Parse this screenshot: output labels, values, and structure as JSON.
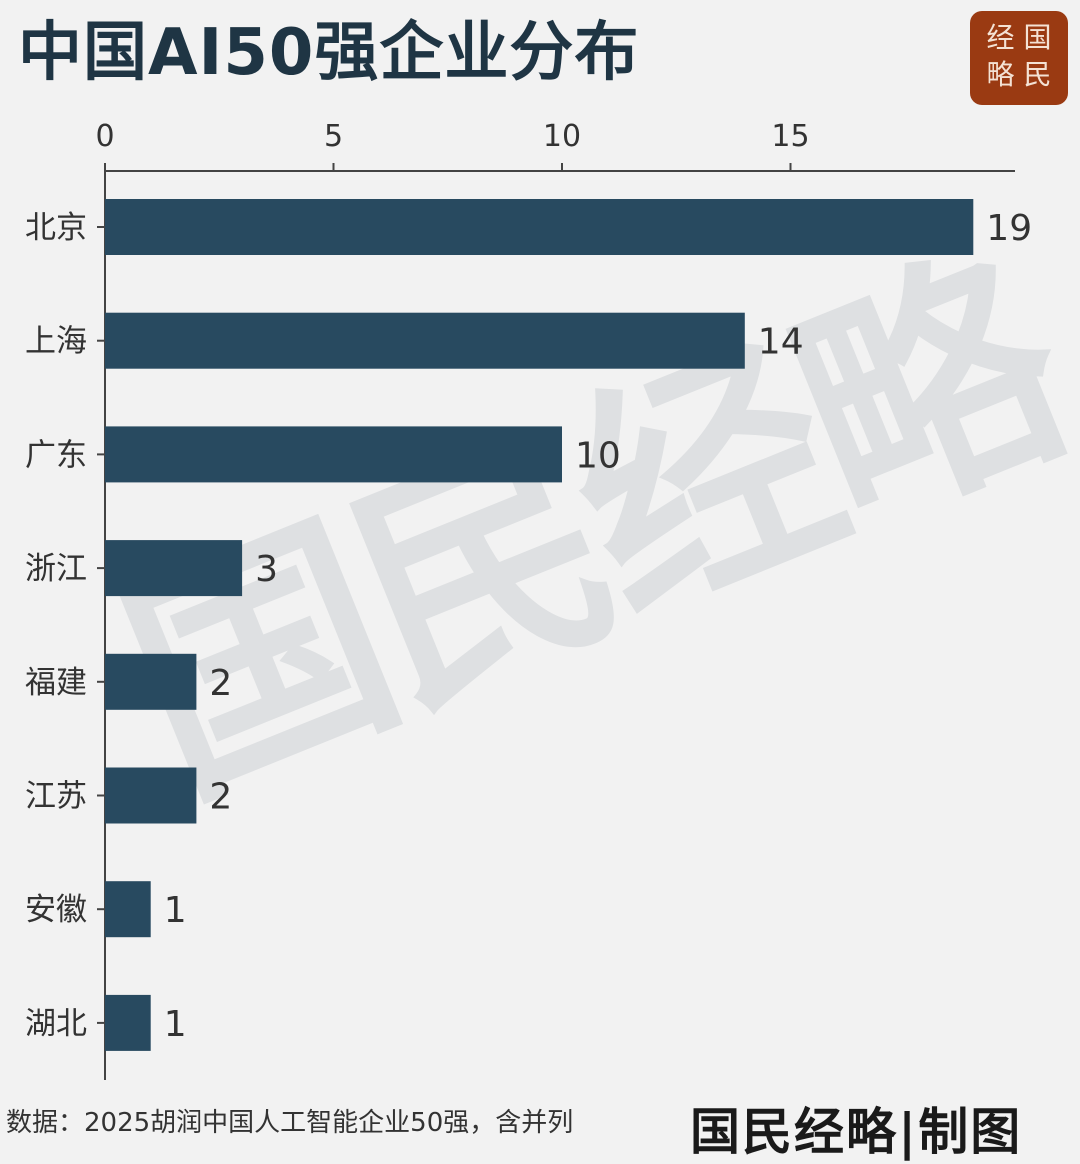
{
  "title": "中国AI50强企业分布",
  "badge": [
    "经",
    "国",
    "略",
    "民"
  ],
  "watermark": "国民经略",
  "source": "数据：2025胡润中国人工智能企业50强，含并列",
  "credit": "国民经略|制图",
  "colors": {
    "bar": "#284a60",
    "title": "#1f3544",
    "badge": "#9a3a12",
    "axis": "#444444"
  },
  "chart_data": {
    "type": "bar",
    "orientation": "horizontal",
    "categories": [
      "北京",
      "上海",
      "广东",
      "浙江",
      "福建",
      "江苏",
      "安徽",
      "湖北"
    ],
    "values": [
      19,
      14,
      10,
      3,
      2,
      2,
      1,
      1
    ],
    "xticks": [
      0,
      5,
      10,
      15
    ],
    "xlim": [
      0,
      19.9
    ],
    "x_axis_position": "top",
    "grid": false,
    "data_labels": true
  }
}
